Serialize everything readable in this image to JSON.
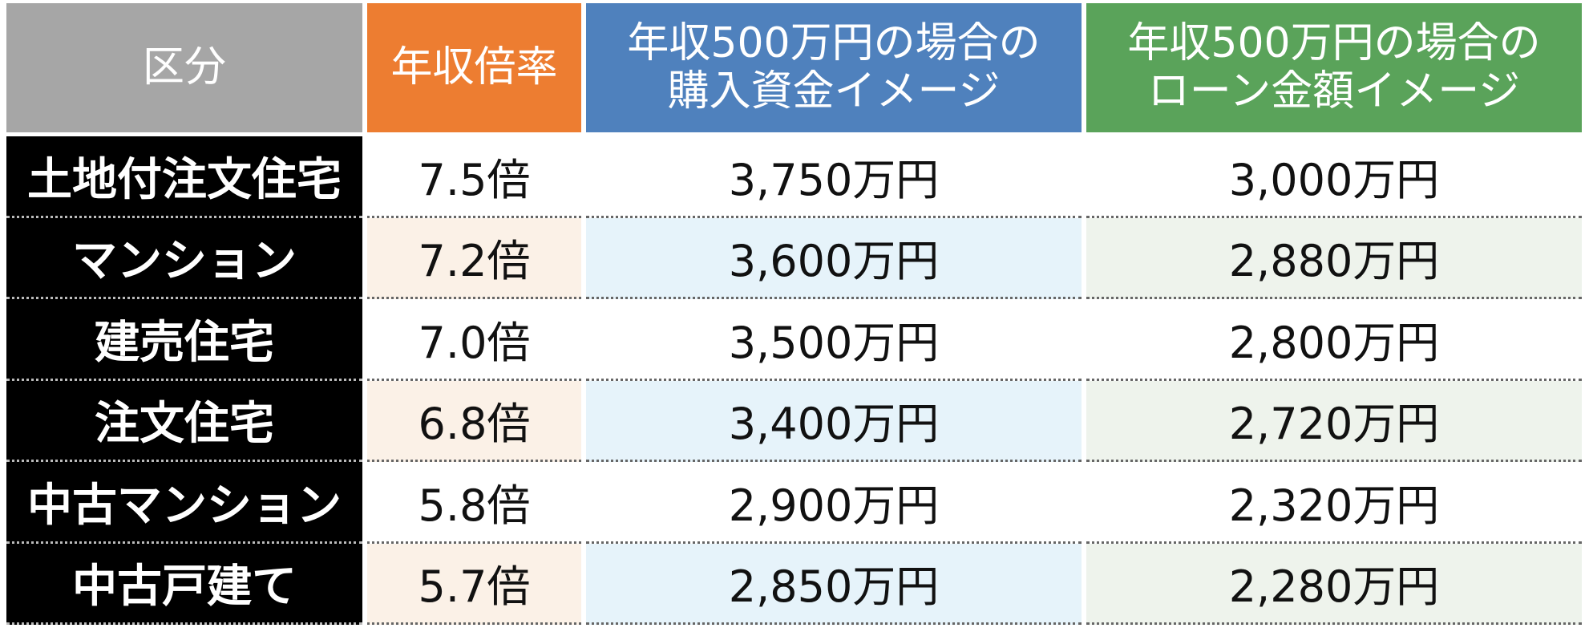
{
  "table": {
    "header": [
      "区分",
      "年収倍率",
      "年収500万円の場合の\n購入資金イメージ",
      "年収500万円の場合の\nローン金額イメージ"
    ],
    "rows": [
      [
        "土地付注文住宅",
        "7.5倍",
        "3,750万円",
        "3,000万円"
      ],
      [
        "マンション",
        "7.2倍",
        "3,600万円",
        "2,880万円"
      ],
      [
        "建売住宅",
        "7.0倍",
        "3,500万円",
        "2,800万円"
      ],
      [
        "注文住宅",
        "6.8倍",
        "3,400万円",
        "2,720万円"
      ],
      [
        "中古マンション",
        "5.8倍",
        "2,900万円",
        "2,320万円"
      ],
      [
        "中古戸建て",
        "5.7倍",
        "2,850万円",
        "2,280万円"
      ]
    ]
  }
}
